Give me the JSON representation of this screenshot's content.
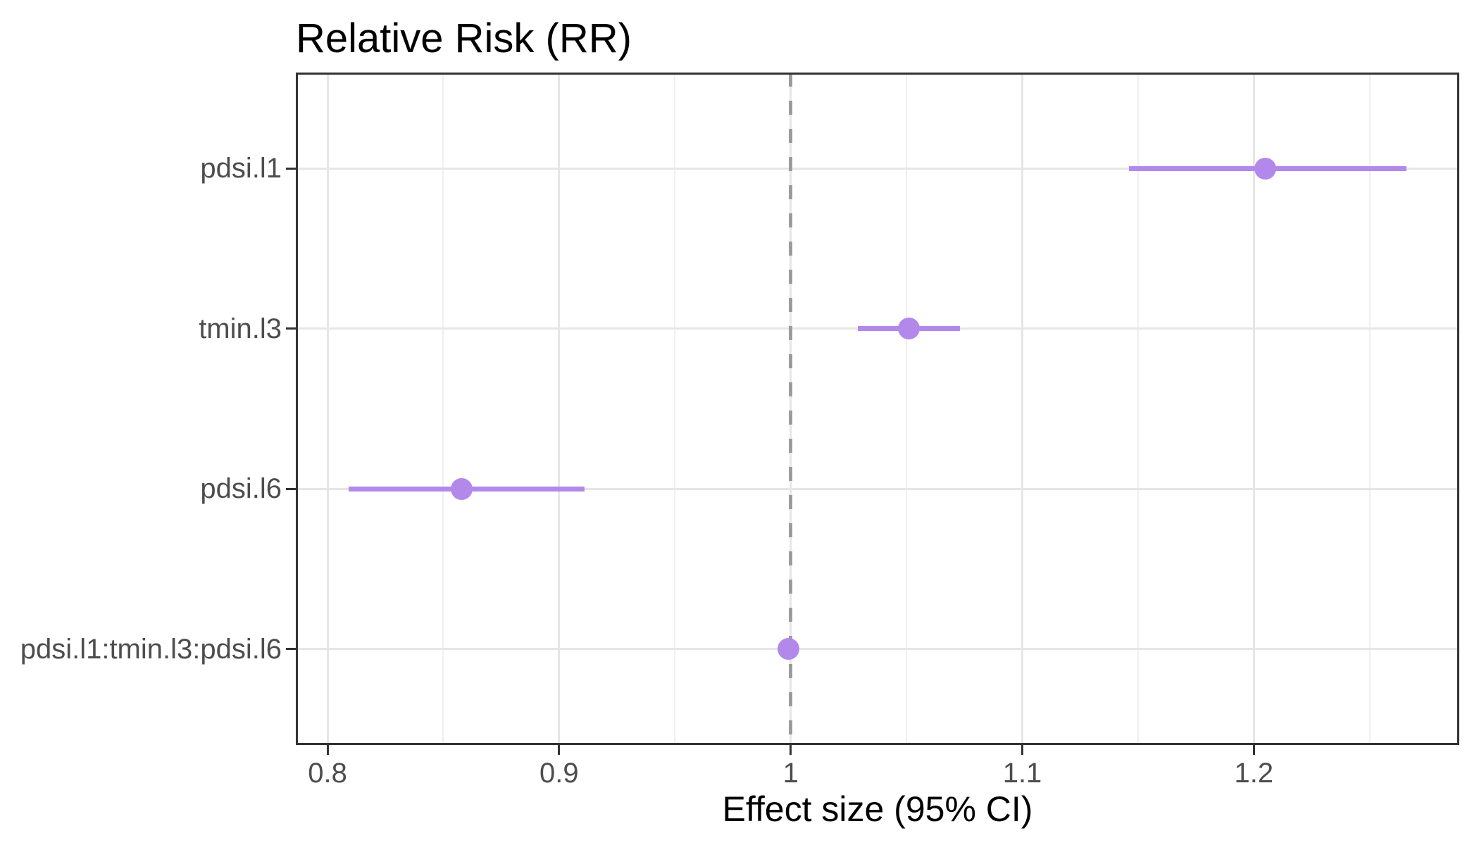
{
  "title": "Relative Risk (RR)",
  "chart_data": {
    "type": "scatter",
    "subtype": "forest-pointrange",
    "title": "Relative Risk (RR)",
    "xlabel": "Effect size (95% CI)",
    "ylabel": "",
    "categories": [
      "pdsi.l1",
      "tmin.l3",
      "pdsi.l6",
      "pdsi.l1:tmin.l3:pdsi.l6"
    ],
    "points": [
      {
        "label": "pdsi.l1",
        "estimate": 1.205,
        "ci_low": 1.146,
        "ci_high": 1.266
      },
      {
        "label": "tmin.l3",
        "estimate": 1.051,
        "ci_low": 1.029,
        "ci_high": 1.073
      },
      {
        "label": "pdsi.l6",
        "estimate": 0.858,
        "ci_low": 0.809,
        "ci_high": 0.911
      },
      {
        "label": "pdsi.l1:tmin.l3:pdsi.l6",
        "estimate": 0.999,
        "ci_low": 0.998,
        "ci_high": 1.001
      }
    ],
    "x_ticks": [
      0.8,
      0.9,
      1.0,
      1.1,
      1.2
    ],
    "x_tick_labels": [
      "0.8",
      "0.9",
      "1",
      "1.1",
      "1.2"
    ],
    "x_minor_ticks": [
      0.85,
      0.95,
      1.05,
      1.15,
      1.25
    ],
    "xlim": [
      0.7863,
      1.2887
    ],
    "reference_line": 1.0,
    "grid": true,
    "legend": false
  },
  "colors": {
    "point": "#B289EA",
    "ci_line": "#B289EA",
    "reference_line": "#9C9C9C",
    "grid_major": "#E6E6E6",
    "grid_minor": "#F0F0F0",
    "panel_border": "#333333",
    "tick": "#333333",
    "axis_text": "#4D4D4D",
    "title_text": "#000000"
  }
}
